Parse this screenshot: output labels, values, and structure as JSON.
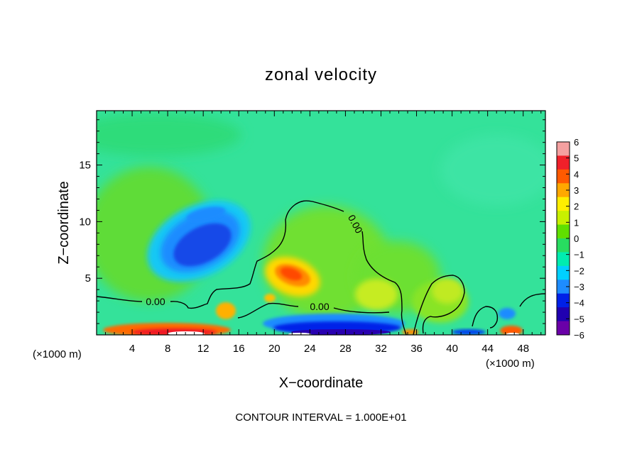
{
  "chart_data": {
    "type": "heatmap",
    "title": "zonal velocity",
    "xlabel": "X−coordinate",
    "ylabel": "Z−coordinate",
    "x_units_left": "(×1000 m)",
    "x_units_right": "(×1000 m)",
    "xlim": [
      0,
      50.5
    ],
    "ylim": [
      0,
      19.8
    ],
    "x_ticks": [
      4,
      8,
      12,
      16,
      20,
      24,
      28,
      32,
      36,
      40,
      44,
      48
    ],
    "y_ticks": [
      5,
      10,
      15
    ],
    "colorbar": {
      "range": [
        -6,
        6
      ],
      "ticks": [
        "6",
        "5",
        "4",
        "3",
        "2",
        "1",
        "0",
        "−1",
        "−2",
        "−3",
        "−4",
        "−5",
        "−6"
      ],
      "colors": [
        "#f4a0a0",
        "#f0202a",
        "#ff5a00",
        "#ffa800",
        "#ffee00",
        "#c8f000",
        "#60e000",
        "#28dc60",
        "#00ecb0",
        "#00d0ff",
        "#1e8cff",
        "#0020e8",
        "#2000b0",
        "#6a00a8"
      ]
    },
    "contour_labels": [
      "0.00",
      "0.00",
      "0.00"
    ],
    "footer": "CONTOUR INTERVAL = 1.000E+01"
  }
}
